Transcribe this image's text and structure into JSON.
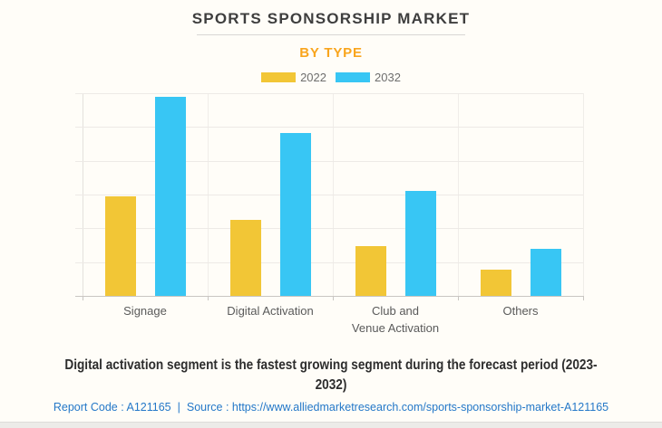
{
  "header": {
    "title": "SPORTS SPONSORSHIP MARKET",
    "subtitle": "BY TYPE"
  },
  "chart_data": {
    "type": "bar",
    "title": "SPORTS SPONSORSHIP MARKET",
    "subtitle": "BY TYPE",
    "categories": [
      "Signage",
      "Digital Activation",
      "Club and Venue Activation",
      "Others"
    ],
    "category_lines": [
      [
        "Signage"
      ],
      [
        "Digital Activation"
      ],
      [
        "Club and",
        "Venue Activation"
      ],
      [
        "Others"
      ]
    ],
    "series": [
      {
        "name": "2022",
        "color": "#F2C636",
        "values": [
          2.95,
          2.25,
          1.48,
          0.78
        ]
      },
      {
        "name": "2032",
        "color": "#38C6F4",
        "values": [
          5.9,
          4.83,
          3.11,
          1.39
        ]
      }
    ],
    "ylim": [
      0,
      6
    ],
    "gridline_count": 6,
    "y_axis_labels": "none",
    "value_units": "relative gridline units (y-axis is unlabeled in source image)",
    "grid": true,
    "legend_position": "top"
  },
  "footer": {
    "headline": "Digital activation segment is the fastest growing segment during the forecast period (2023-2032)",
    "headline_lines": [
      "Digital activation segment is the fastest growing segment during the forecast period (2023-",
      "2032)"
    ],
    "report_code": "Report Code : A121165",
    "separator": "|",
    "source_prefix": "Source :",
    "source_url": "https://www.alliedmarketresearch.com/sports-sponsorship-market-A121165"
  },
  "colors": {
    "background": "#FFFDF8",
    "accent_orange": "#F9A51D",
    "series_2022": "#F2C636",
    "series_2032": "#38C6F4",
    "link_blue": "#2478C8",
    "grid_line": "#EDEAE6",
    "axis_line": "#C9C6C2"
  }
}
